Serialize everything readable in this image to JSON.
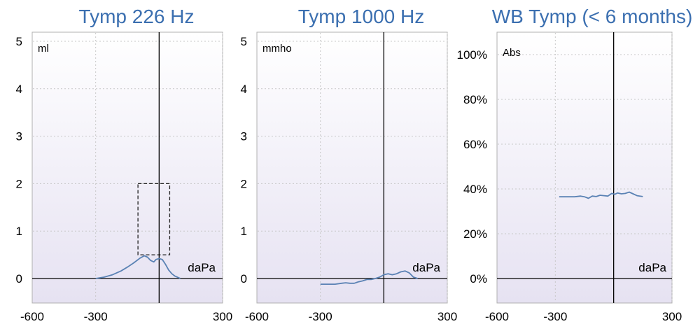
{
  "colors": {
    "title": "#3b6fb0",
    "curve": "#5a82b4",
    "axis": "#000000",
    "grid": "#c8c8c8"
  },
  "chart_data": [
    {
      "type": "line",
      "title": "Tymp 226 Hz",
      "unit_label": "ml",
      "xlabel": "daPa",
      "xlim": [
        -600,
        300
      ],
      "ylim": [
        0,
        5
      ],
      "x_ticks": [
        "-600",
        "-300",
        "300"
      ],
      "x_tick_values": [
        -600,
        -300,
        300
      ],
      "y_ticks": [
        "0",
        "1",
        "2",
        "3",
        "4",
        "5"
      ],
      "y_tick_values": [
        0,
        1,
        2,
        3,
        4,
        5
      ],
      "grid_x": [
        -300,
        300
      ],
      "baseline_y": 0,
      "zero_line_x": 0,
      "normal_box": {
        "x": [
          -100,
          50
        ],
        "y": [
          0.5,
          2.0
        ]
      },
      "series": [
        {
          "x": [
            -300,
            -260,
            -220,
            -180,
            -150,
            -120,
            -90,
            -70,
            -55,
            -40,
            -25,
            -15,
            0,
            15,
            30,
            45,
            60,
            75,
            90,
            100
          ],
          "y": [
            0.0,
            0.03,
            0.08,
            0.16,
            0.24,
            0.33,
            0.43,
            0.48,
            0.45,
            0.38,
            0.35,
            0.4,
            0.42,
            0.4,
            0.3,
            0.18,
            0.1,
            0.05,
            0.02,
            0.0
          ]
        }
      ]
    },
    {
      "type": "line",
      "title": "Tymp 1000 Hz",
      "unit_label": "mmho",
      "xlabel": "daPa",
      "xlim": [
        -600,
        300
      ],
      "ylim": [
        0,
        5
      ],
      "x_ticks": [
        "-600",
        "-300",
        "300"
      ],
      "x_tick_values": [
        -600,
        -300,
        300
      ],
      "y_ticks": [
        "0",
        "1",
        "2",
        "3",
        "4",
        "5"
      ],
      "y_tick_values": [
        0,
        1,
        2,
        3,
        4,
        5
      ],
      "grid_x": [
        -300,
        300
      ],
      "baseline_y": 0,
      "zero_line_x": 0,
      "series": [
        {
          "x": [
            -300,
            -260,
            -230,
            -200,
            -180,
            -160,
            -140,
            -120,
            -100,
            -80,
            -60,
            -40,
            -20,
            0,
            20,
            40,
            60,
            80,
            100,
            120,
            140,
            160
          ],
          "y": [
            -0.12,
            -0.12,
            -0.12,
            -0.1,
            -0.09,
            -0.1,
            -0.1,
            -0.07,
            -0.05,
            -0.02,
            -0.02,
            0.0,
            0.03,
            0.08,
            0.1,
            0.08,
            0.1,
            0.14,
            0.16,
            0.12,
            0.03,
            0.0
          ]
        }
      ]
    },
    {
      "type": "line",
      "title": "WB Tymp (< 6 months)",
      "unit_label": "Abs",
      "xlabel": "daPa",
      "xlim": [
        -600,
        300
      ],
      "ylim": [
        0,
        100
      ],
      "x_ticks": [
        "-600",
        "-300",
        "300"
      ],
      "x_tick_values": [
        -600,
        -300,
        300
      ],
      "y_ticks": [
        "0%",
        "20%",
        "40%",
        "60%",
        "80%",
        "100%"
      ],
      "y_tick_values": [
        0,
        20,
        40,
        60,
        80,
        100
      ],
      "grid_x": [
        -300,
        300
      ],
      "baseline_y": 0,
      "zero_line_x": 0,
      "series": [
        {
          "x": [
            -280,
            -240,
            -200,
            -170,
            -150,
            -130,
            -110,
            -90,
            -70,
            -50,
            -30,
            -10,
            5,
            20,
            40,
            60,
            80,
            100,
            120,
            150
          ],
          "y": [
            36.5,
            36.5,
            36.5,
            36.8,
            36.5,
            35.8,
            36.8,
            36.6,
            37.2,
            37.0,
            36.8,
            38.0,
            37.6,
            38.2,
            37.8,
            38.0,
            38.6,
            37.8,
            37.0,
            36.6
          ]
        }
      ]
    }
  ]
}
